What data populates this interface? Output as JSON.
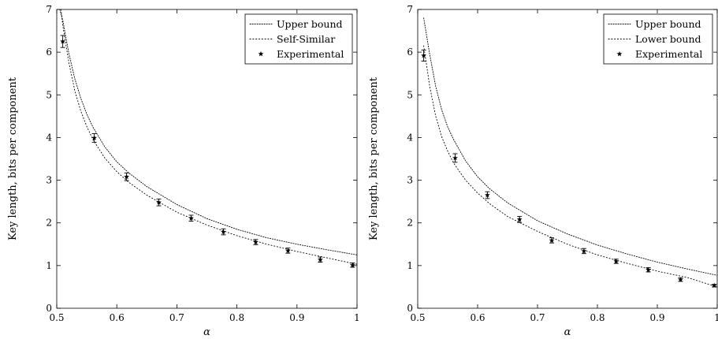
{
  "chart_data": [
    {
      "type": "line",
      "xlabel": "α",
      "ylabel": "Key length, bits per component",
      "xlim": [
        0.5,
        1.0
      ],
      "ylim": [
        0,
        7
      ],
      "xticks": [
        "0.5",
        "0.6",
        "0.7",
        "0.8",
        "0.9",
        "1"
      ],
      "yticks": [
        "0",
        "1",
        "2",
        "3",
        "4",
        "5",
        "6",
        "7"
      ],
      "grid": false,
      "legend_position": "top-right",
      "series": [
        {
          "name": "Upper bound",
          "style": "dotted line",
          "x": [
            0.505,
            0.51,
            0.52,
            0.53,
            0.54,
            0.55,
            0.56,
            0.58,
            0.6,
            0.62,
            0.65,
            0.7,
            0.75,
            0.8,
            0.85,
            0.9,
            0.95,
            1.0
          ],
          "y": [
            7.0,
            6.75,
            5.98,
            5.38,
            4.92,
            4.55,
            4.25,
            3.78,
            3.43,
            3.17,
            2.85,
            2.43,
            2.1,
            1.85,
            1.65,
            1.5,
            1.37,
            1.25
          ]
        },
        {
          "name": "Self-Similar",
          "style": "dotted line",
          "x": [
            0.507,
            0.51,
            0.52,
            0.53,
            0.54,
            0.55,
            0.56,
            0.58,
            0.6,
            0.62,
            0.65,
            0.7,
            0.75,
            0.8,
            0.85,
            0.9,
            0.95,
            1.0
          ],
          "y": [
            7.0,
            6.63,
            5.77,
            5.1,
            4.62,
            4.26,
            3.96,
            3.52,
            3.2,
            2.95,
            2.65,
            2.25,
            1.95,
            1.7,
            1.5,
            1.33,
            1.18,
            1.03
          ]
        },
        {
          "name": "Experimental",
          "style": "star markers with error bars",
          "x": [
            0.51,
            0.5625,
            0.6163,
            0.67,
            0.7238,
            0.7775,
            0.8313,
            0.885,
            0.9388,
            0.9925
          ],
          "y": [
            6.25,
            3.99,
            3.08,
            2.48,
            2.11,
            1.79,
            1.55,
            1.35,
            1.14,
            1.01
          ],
          "err": [
            0.14,
            0.1,
            0.09,
            0.08,
            0.07,
            0.07,
            0.06,
            0.06,
            0.06,
            0.05
          ]
        }
      ]
    },
    {
      "type": "line",
      "xlabel": "α",
      "ylabel": "Key length, bits per component",
      "xlim": [
        0.5,
        1.0
      ],
      "ylim": [
        0,
        7
      ],
      "xticks": [
        "0.5",
        "0.6",
        "0.7",
        "0.8",
        "0.9",
        "1"
      ],
      "yticks": [
        "0",
        "1",
        "2",
        "3",
        "4",
        "5",
        "6",
        "7"
      ],
      "grid": false,
      "legend_position": "top-right",
      "series": [
        {
          "name": "Upper bound",
          "style": "dotted line",
          "x": [
            0.51,
            0.52,
            0.53,
            0.54,
            0.55,
            0.56,
            0.58,
            0.6,
            0.62,
            0.65,
            0.7,
            0.75,
            0.8,
            0.85,
            0.9,
            0.95,
            1.0
          ],
          "y": [
            6.8,
            5.95,
            5.2,
            4.65,
            4.25,
            3.95,
            3.45,
            3.08,
            2.8,
            2.47,
            2.05,
            1.74,
            1.48,
            1.27,
            1.08,
            0.92,
            0.77
          ]
        },
        {
          "name": "Lower bound",
          "style": "dotted line",
          "x": [
            0.51,
            0.52,
            0.53,
            0.54,
            0.55,
            0.56,
            0.58,
            0.6,
            0.62,
            0.65,
            0.7,
            0.75,
            0.8,
            0.85,
            0.9,
            0.95,
            1.0
          ],
          "y": [
            6.15,
            5.2,
            4.5,
            4.02,
            3.68,
            3.4,
            3.0,
            2.7,
            2.45,
            2.15,
            1.8,
            1.5,
            1.25,
            1.05,
            0.87,
            0.72,
            0.5
          ]
        },
        {
          "name": "Experimental",
          "style": "star markers with error bars",
          "x": [
            0.51,
            0.5625,
            0.6163,
            0.67,
            0.7238,
            0.7775,
            0.8313,
            0.885,
            0.9388,
            0.995
          ],
          "y": [
            5.92,
            3.52,
            2.65,
            2.08,
            1.59,
            1.34,
            1.1,
            0.9,
            0.67,
            0.53
          ],
          "err": [
            0.13,
            0.1,
            0.08,
            0.07,
            0.06,
            0.06,
            0.05,
            0.05,
            0.04,
            0.03
          ]
        }
      ]
    }
  ]
}
